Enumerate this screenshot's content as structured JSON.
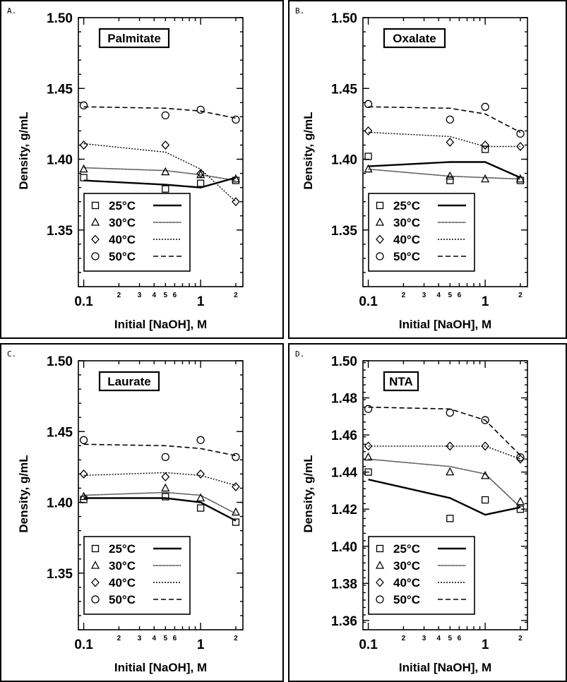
{
  "chart_data": [
    {
      "type": "line",
      "panel_label": "A.",
      "title": "Palmitate",
      "xlabel": "Initial  [NaOH],  M",
      "ylabel": "Density,  g/mL",
      "x_scale": "log",
      "xlim": [
        0.09,
        2.3
      ],
      "ylim": [
        1.31,
        1.5
      ],
      "x_tick_labels": [
        {
          "value": 0.1,
          "label": "0.1",
          "major": true
        },
        {
          "value": 0.2,
          "label": "2",
          "major": false
        },
        {
          "value": 0.3,
          "label": "3",
          "major": false
        },
        {
          "value": 0.4,
          "label": "4",
          "major": false
        },
        {
          "value": 0.5,
          "label": "5",
          "major": false
        },
        {
          "value": 0.6,
          "label": "6",
          "major": false
        },
        {
          "value": 1,
          "label": "1",
          "major": true
        },
        {
          "value": 2,
          "label": "2",
          "major": false
        }
      ],
      "y_ticks": [
        {
          "value": 1.35,
          "label": "1.35"
        },
        {
          "value": 1.4,
          "label": "1.40"
        },
        {
          "value": 1.45,
          "label": "1.45"
        },
        {
          "value": 1.5,
          "label": "1.50"
        }
      ],
      "legend_position": "lower-left",
      "series": [
        {
          "name": "25°C",
          "marker": "square",
          "line": "solid",
          "points": [
            [
              0.1,
              1.387
            ],
            [
              0.5,
              1.379
            ],
            [
              1.0,
              1.383
            ],
            [
              2.0,
              1.385
            ]
          ],
          "fit": [
            [
              0.1,
              1.385
            ],
            [
              0.5,
              1.382
            ],
            [
              1.0,
              1.38
            ],
            [
              2.0,
              1.387
            ]
          ]
        },
        {
          "name": "30°C",
          "marker": "triangle",
          "line": "dense",
          "points": [
            [
              0.1,
              1.393
            ],
            [
              0.5,
              1.391
            ],
            [
              1.0,
              1.389
            ],
            [
              2.0,
              1.386
            ]
          ],
          "fit": [
            [
              0.1,
              1.394
            ],
            [
              0.5,
              1.392
            ],
            [
              1.0,
              1.389
            ],
            [
              2.0,
              1.385
            ]
          ]
        },
        {
          "name": "40°C",
          "marker": "diamond",
          "line": "dotted",
          "points": [
            [
              0.1,
              1.41
            ],
            [
              0.5,
              1.41
            ],
            [
              1.0,
              1.39
            ],
            [
              2.0,
              1.37
            ]
          ],
          "fit": [
            [
              0.1,
              1.411
            ],
            [
              0.5,
              1.405
            ],
            [
              1.0,
              1.393
            ],
            [
              2.0,
              1.37
            ]
          ]
        },
        {
          "name": "50°C",
          "marker": "circle",
          "line": "dashed",
          "points": [
            [
              0.1,
              1.438
            ],
            [
              0.5,
              1.431
            ],
            [
              1.0,
              1.435
            ],
            [
              2.0,
              1.428
            ]
          ],
          "fit": [
            [
              0.1,
              1.437
            ],
            [
              0.5,
              1.436
            ],
            [
              1.0,
              1.434
            ],
            [
              2.0,
              1.429
            ]
          ]
        }
      ]
    },
    {
      "type": "line",
      "panel_label": "B.",
      "title": "Oxalate",
      "xlabel": "Initial  [NaOH],  M",
      "ylabel": "Density,  g/mL",
      "x_scale": "log",
      "xlim": [
        0.09,
        2.3
      ],
      "ylim": [
        1.31,
        1.5
      ],
      "x_tick_labels": [
        {
          "value": 0.1,
          "label": "0.1",
          "major": true
        },
        {
          "value": 0.2,
          "label": "2",
          "major": false
        },
        {
          "value": 0.3,
          "label": "3",
          "major": false
        },
        {
          "value": 0.4,
          "label": "4",
          "major": false
        },
        {
          "value": 0.5,
          "label": "5",
          "major": false
        },
        {
          "value": 0.6,
          "label": "6",
          "major": false
        },
        {
          "value": 1,
          "label": "1",
          "major": true
        },
        {
          "value": 2,
          "label": "2",
          "major": false
        }
      ],
      "y_ticks": [
        {
          "value": 1.35,
          "label": "1.35"
        },
        {
          "value": 1.4,
          "label": "1.40"
        },
        {
          "value": 1.45,
          "label": "1.45"
        },
        {
          "value": 1.5,
          "label": "1.50"
        }
      ],
      "legend_position": "lower-left",
      "series": [
        {
          "name": "25°C",
          "marker": "square",
          "line": "solid",
          "points": [
            [
              0.1,
              1.402
            ],
            [
              0.5,
              1.385
            ],
            [
              1.0,
              1.407
            ],
            [
              2.0,
              1.385
            ]
          ],
          "fit": [
            [
              0.1,
              1.395
            ],
            [
              0.5,
              1.398
            ],
            [
              1.0,
              1.398
            ],
            [
              2.0,
              1.387
            ]
          ]
        },
        {
          "name": "30°C",
          "marker": "triangle",
          "line": "dense",
          "points": [
            [
              0.1,
              1.393
            ],
            [
              0.5,
              1.388
            ],
            [
              1.0,
              1.386
            ],
            [
              2.0,
              1.386
            ]
          ],
          "fit": [
            [
              0.1,
              1.393
            ],
            [
              0.5,
              1.388
            ],
            [
              1.0,
              1.387
            ],
            [
              2.0,
              1.386
            ]
          ]
        },
        {
          "name": "40°C",
          "marker": "diamond",
          "line": "dotted",
          "points": [
            [
              0.1,
              1.42
            ],
            [
              0.5,
              1.412
            ],
            [
              1.0,
              1.41
            ],
            [
              2.0,
              1.409
            ]
          ],
          "fit": [
            [
              0.1,
              1.419
            ],
            [
              0.5,
              1.416
            ],
            [
              1.0,
              1.409
            ],
            [
              2.0,
              1.409
            ]
          ]
        },
        {
          "name": "50°C",
          "marker": "circle",
          "line": "dashed",
          "points": [
            [
              0.1,
              1.439
            ],
            [
              0.5,
              1.428
            ],
            [
              1.0,
              1.437
            ],
            [
              2.0,
              1.418
            ]
          ],
          "fit": [
            [
              0.1,
              1.437
            ],
            [
              0.5,
              1.436
            ],
            [
              1.0,
              1.432
            ],
            [
              2.0,
              1.419
            ]
          ]
        }
      ]
    },
    {
      "type": "line",
      "panel_label": "C.",
      "title": "Laurate",
      "xlabel": "Initial  [NaOH],  M",
      "ylabel": "Density,  g/mL",
      "x_scale": "log",
      "xlim": [
        0.09,
        2.3
      ],
      "ylim": [
        1.31,
        1.5
      ],
      "x_tick_labels": [
        {
          "value": 0.1,
          "label": "0.1",
          "major": true
        },
        {
          "value": 0.2,
          "label": "2",
          "major": false
        },
        {
          "value": 0.3,
          "label": "3",
          "major": false
        },
        {
          "value": 0.4,
          "label": "4",
          "major": false
        },
        {
          "value": 0.5,
          "label": "5",
          "major": false
        },
        {
          "value": 0.6,
          "label": "6",
          "major": false
        },
        {
          "value": 1,
          "label": "1",
          "major": true
        },
        {
          "value": 2,
          "label": "2",
          "major": false
        }
      ],
      "y_ticks": [
        {
          "value": 1.35,
          "label": "1.35"
        },
        {
          "value": 1.4,
          "label": "1.40"
        },
        {
          "value": 1.45,
          "label": "1.45"
        },
        {
          "value": 1.5,
          "label": "1.50"
        }
      ],
      "legend_position": "lower-left",
      "series": [
        {
          "name": "25°C",
          "marker": "square",
          "line": "solid",
          "points": [
            [
              0.1,
              1.402
            ],
            [
              0.5,
              1.404
            ],
            [
              1.0,
              1.396
            ],
            [
              2.0,
              1.386
            ]
          ],
          "fit": [
            [
              0.1,
              1.403
            ],
            [
              0.5,
              1.403
            ],
            [
              1.0,
              1.4
            ],
            [
              2.0,
              1.387
            ]
          ]
        },
        {
          "name": "30°C",
          "marker": "triangle",
          "line": "dense",
          "points": [
            [
              0.1,
              1.404
            ],
            [
              0.5,
              1.41
            ],
            [
              1.0,
              1.403
            ],
            [
              2.0,
              1.393
            ]
          ],
          "fit": [
            [
              0.1,
              1.405
            ],
            [
              0.5,
              1.407
            ],
            [
              1.0,
              1.405
            ],
            [
              2.0,
              1.392
            ]
          ]
        },
        {
          "name": "40°C",
          "marker": "diamond",
          "line": "dotted",
          "points": [
            [
              0.1,
              1.42
            ],
            [
              0.5,
              1.418
            ],
            [
              1.0,
              1.42
            ],
            [
              2.0,
              1.411
            ]
          ],
          "fit": [
            [
              0.1,
              1.419
            ],
            [
              0.5,
              1.421
            ],
            [
              1.0,
              1.419
            ],
            [
              2.0,
              1.412
            ]
          ]
        },
        {
          "name": "50°C",
          "marker": "circle",
          "line": "dashed",
          "points": [
            [
              0.1,
              1.444
            ],
            [
              0.5,
              1.432
            ],
            [
              1.0,
              1.444
            ],
            [
              2.0,
              1.432
            ]
          ],
          "fit": [
            [
              0.1,
              1.441
            ],
            [
              0.5,
              1.44
            ],
            [
              1.0,
              1.438
            ],
            [
              2.0,
              1.433
            ]
          ]
        }
      ]
    },
    {
      "type": "line",
      "panel_label": "D.",
      "title": "NTA",
      "xlabel": "Initial  [NaOH],  M",
      "ylabel": "Density,  g/mL",
      "x_scale": "log",
      "xlim": [
        0.09,
        2.3
      ],
      "ylim": [
        1.355,
        1.5
      ],
      "x_tick_labels": [
        {
          "value": 0.1,
          "label": "0.1",
          "major": true
        },
        {
          "value": 0.2,
          "label": "2",
          "major": false
        },
        {
          "value": 0.3,
          "label": "3",
          "major": false
        },
        {
          "value": 0.4,
          "label": "4",
          "major": false
        },
        {
          "value": 0.5,
          "label": "5",
          "major": false
        },
        {
          "value": 0.6,
          "label": "6",
          "major": false
        },
        {
          "value": 1,
          "label": "1",
          "major": true
        },
        {
          "value": 2,
          "label": "2",
          "major": false
        }
      ],
      "y_ticks": [
        {
          "value": 1.36,
          "label": "1.36"
        },
        {
          "value": 1.38,
          "label": "1.38"
        },
        {
          "value": 1.4,
          "label": "1.40"
        },
        {
          "value": 1.42,
          "label": "1.42"
        },
        {
          "value": 1.44,
          "label": "1.44"
        },
        {
          "value": 1.46,
          "label": "1.46"
        },
        {
          "value": 1.48,
          "label": "1.48"
        },
        {
          "value": 1.5,
          "label": "1.50"
        }
      ],
      "legend_position": "lower-left",
      "series": [
        {
          "name": "25°C",
          "marker": "square",
          "line": "solid",
          "points": [
            [
              0.1,
              1.44
            ],
            [
              0.5,
              1.415
            ],
            [
              1.0,
              1.425
            ],
            [
              2.0,
              1.42
            ]
          ],
          "fit": [
            [
              0.1,
              1.436
            ],
            [
              0.5,
              1.426
            ],
            [
              1.0,
              1.417
            ],
            [
              2.0,
              1.421
            ]
          ]
        },
        {
          "name": "30°C",
          "marker": "triangle",
          "line": "dense",
          "points": [
            [
              0.1,
              1.448
            ],
            [
              0.5,
              1.44
            ],
            [
              1.0,
              1.438
            ],
            [
              2.0,
              1.424
            ]
          ],
          "fit": [
            [
              0.1,
              1.447
            ],
            [
              0.5,
              1.443
            ],
            [
              1.0,
              1.439
            ],
            [
              2.0,
              1.421
            ]
          ]
        },
        {
          "name": "40°C",
          "marker": "diamond",
          "line": "dotted",
          "points": [
            [
              0.1,
              1.454
            ],
            [
              0.5,
              1.454
            ],
            [
              1.0,
              1.454
            ],
            [
              2.0,
              1.447
            ]
          ],
          "fit": [
            [
              0.1,
              1.454
            ],
            [
              0.5,
              1.454
            ],
            [
              1.0,
              1.454
            ],
            [
              2.0,
              1.447
            ]
          ]
        },
        {
          "name": "50°C",
          "marker": "circle",
          "line": "dashed",
          "points": [
            [
              0.1,
              1.474
            ],
            [
              0.5,
              1.472
            ],
            [
              1.0,
              1.468
            ],
            [
              2.0,
              1.448
            ]
          ],
          "fit": [
            [
              0.1,
              1.475
            ],
            [
              0.5,
              1.474
            ],
            [
              1.0,
              1.468
            ],
            [
              2.0,
              1.449
            ]
          ]
        }
      ]
    }
  ]
}
